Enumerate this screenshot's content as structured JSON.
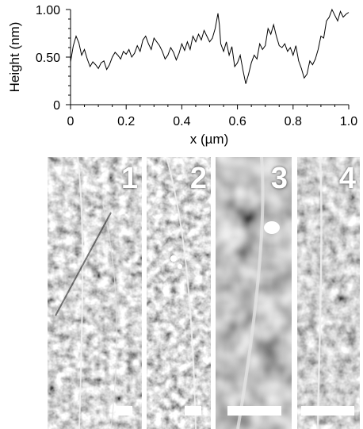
{
  "chart_data": {
    "type": "line",
    "xlabel": "x (µm)",
    "ylabel": "Height (nm)",
    "xlim": [
      0,
      1.0
    ],
    "ylim": [
      0,
      1.0
    ],
    "x_ticks": [
      "0",
      "0.2",
      "0.4",
      "0.6",
      "0.8",
      "1.0"
    ],
    "y_ticks": [
      "0",
      "0.50",
      "1.00"
    ],
    "grid": false,
    "series": [
      {
        "x": [
          0.0,
          0.01,
          0.02,
          0.03,
          0.04,
          0.05,
          0.06,
          0.07,
          0.08,
          0.09,
          0.1,
          0.11,
          0.12,
          0.13,
          0.14,
          0.15,
          0.16,
          0.17,
          0.18,
          0.19,
          0.2,
          0.21,
          0.22,
          0.23,
          0.24,
          0.25,
          0.26,
          0.27,
          0.28,
          0.29,
          0.3,
          0.31,
          0.32,
          0.33,
          0.34,
          0.35,
          0.36,
          0.37,
          0.38,
          0.39,
          0.4,
          0.41,
          0.42,
          0.43,
          0.44,
          0.45,
          0.46,
          0.47,
          0.48,
          0.49,
          0.5,
          0.51,
          0.52,
          0.53,
          0.535,
          0.54,
          0.55,
          0.56,
          0.57,
          0.58,
          0.59,
          0.6,
          0.61,
          0.62,
          0.63,
          0.64,
          0.65,
          0.66,
          0.67,
          0.68,
          0.69,
          0.7,
          0.71,
          0.72,
          0.73,
          0.74,
          0.75,
          0.76,
          0.77,
          0.78,
          0.79,
          0.8,
          0.81,
          0.82,
          0.83,
          0.84,
          0.85,
          0.86,
          0.87,
          0.88,
          0.89,
          0.9,
          0.91,
          0.92,
          0.93,
          0.94,
          0.95,
          0.96,
          0.97,
          0.98,
          0.99,
          1.0
        ],
        "values": [
          0.45,
          0.62,
          0.72,
          0.65,
          0.52,
          0.58,
          0.48,
          0.4,
          0.45,
          0.42,
          0.38,
          0.44,
          0.46,
          0.37,
          0.42,
          0.5,
          0.55,
          0.52,
          0.48,
          0.56,
          0.53,
          0.58,
          0.5,
          0.54,
          0.62,
          0.56,
          0.68,
          0.72,
          0.64,
          0.58,
          0.7,
          0.66,
          0.62,
          0.56,
          0.48,
          0.52,
          0.6,
          0.55,
          0.47,
          0.54,
          0.64,
          0.57,
          0.66,
          0.58,
          0.72,
          0.66,
          0.74,
          0.68,
          0.78,
          0.72,
          0.66,
          0.7,
          0.8,
          0.96,
          0.84,
          0.64,
          0.56,
          0.66,
          0.52,
          0.61,
          0.4,
          0.44,
          0.52,
          0.36,
          0.22,
          0.32,
          0.44,
          0.52,
          0.48,
          0.64,
          0.58,
          0.62,
          0.8,
          0.74,
          0.84,
          0.72,
          0.62,
          0.6,
          0.64,
          0.56,
          0.6,
          0.52,
          0.62,
          0.46,
          0.38,
          0.28,
          0.32,
          0.46,
          0.42,
          0.48,
          0.58,
          0.72,
          0.7,
          0.88,
          0.92,
          1.0,
          0.94,
          0.88,
          0.98,
          0.92,
          0.95,
          0.97
        ]
      }
    ]
  },
  "afm_images": [
    {
      "label": "1"
    },
    {
      "label": "2"
    },
    {
      "label": "3"
    },
    {
      "label": "4"
    }
  ]
}
